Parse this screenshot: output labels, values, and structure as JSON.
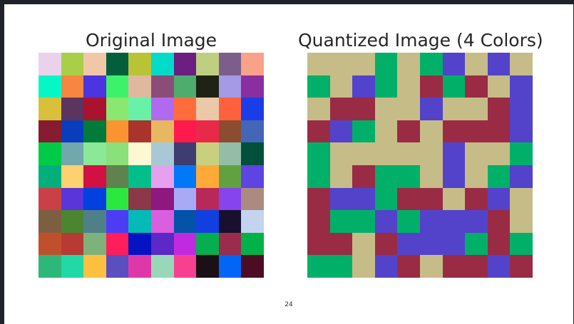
{
  "slide": {
    "left_panel_title": "Original Image",
    "right_panel_title": "Quantized Image (4 Colors)",
    "page_number": "24"
  },
  "original_grid": [
    [
      "#ead3ea",
      "#a8cf47",
      "#f0c8a8",
      "#035e3b",
      "#b8c436",
      "#02dbc9",
      "#6b1f80",
      "#bfcf81",
      "#7b5e8c",
      "#f8a28a"
    ],
    [
      "#06f7c6",
      "#f78740",
      "#4a35e0",
      "#3df26b",
      "#e0b8a0",
      "#8c4c78",
      "#4ead6d",
      "#1e2313",
      "#a49ae6",
      "#8a2f9f"
    ],
    [
      "#d8c03a",
      "#5c3460",
      "#ab1230",
      "#8ae870",
      "#67f2a8",
      "#b06af0",
      "#ff6d3c",
      "#eac8a8",
      "#ff6040",
      "#1b3de8"
    ],
    [
      "#851c30",
      "#0a3dbc",
      "#017b3b",
      "#fa9430",
      "#a8342c",
      "#e8b860",
      "#fe1a4c",
      "#e82a48",
      "#8b4c30",
      "#4466b6"
    ],
    [
      "#00cb47",
      "#70a8ae",
      "#8be896",
      "#8ae07a",
      "#fdf7d3",
      "#a8c8d8",
      "#3e3c70",
      "#c8d080",
      "#94bda8",
      "#00503c"
    ],
    [
      "#02ae7a",
      "#fdd070",
      "#d21042",
      "#60824c",
      "#00bf8a",
      "#e5a0ee",
      "#0178f8",
      "#ffaa38",
      "#62a140",
      "#5d44e3"
    ],
    [
      "#cb4048",
      "#5935da",
      "#0240e0",
      "#2be83f",
      "#8c3848",
      "#8c1880",
      "#a9aaf6",
      "#b82858",
      "#8544ee",
      "#ad8a80"
    ],
    [
      "#7e5e40",
      "#4b8532",
      "#4e8088",
      "#4d3cf6",
      "#04bab6",
      "#da5ee0",
      "#0252a8",
      "#1240e0",
      "#18102e",
      "#c4d4ee"
    ],
    [
      "#c0502c",
      "#b83a34",
      "#7fb17a",
      "#ff1d5c",
      "#0514c2",
      "#5c28c8",
      "#c22ae0",
      "#05ae4e",
      "#9a2c4c",
      "#02b248"
    ],
    [
      "#2cb878",
      "#22d8a6",
      "#ffc040",
      "#5a4ec0",
      "#de38a8",
      "#98d8b8",
      "#f84090",
      "#1b1016",
      "#0165f8",
      "#4c0c24"
    ]
  ],
  "quantized_palette": {
    "K": "#c6bc87",
    "G": "#00b068",
    "B": "#5343cb",
    "R": "#9a2b45"
  },
  "quantized_grid": [
    [
      "K",
      "K",
      "K",
      "G",
      "K",
      "G",
      "B",
      "K",
      "B",
      "K"
    ],
    [
      "G",
      "K",
      "B",
      "G",
      "K",
      "R",
      "G",
      "R",
      "K",
      "B"
    ],
    [
      "K",
      "R",
      "R",
      "K",
      "K",
      "B",
      "K",
      "K",
      "R",
      "B"
    ],
    [
      "R",
      "B",
      "G",
      "K",
      "R",
      "K",
      "R",
      "R",
      "R",
      "B"
    ],
    [
      "G",
      "K",
      "K",
      "K",
      "K",
      "K",
      "B",
      "K",
      "K",
      "G"
    ],
    [
      "G",
      "K",
      "R",
      "G",
      "G",
      "K",
      "B",
      "K",
      "G",
      "B"
    ],
    [
      "R",
      "B",
      "B",
      "G",
      "R",
      "R",
      "K",
      "R",
      "B",
      "K"
    ],
    [
      "R",
      "G",
      "G",
      "B",
      "G",
      "B",
      "B",
      "B",
      "R",
      "K"
    ],
    [
      "R",
      "R",
      "K",
      "R",
      "B",
      "B",
      "B",
      "G",
      "R",
      "G"
    ],
    [
      "G",
      "G",
      "K",
      "B",
      "R",
      "K",
      "R",
      "R",
      "B",
      "R"
    ]
  ]
}
